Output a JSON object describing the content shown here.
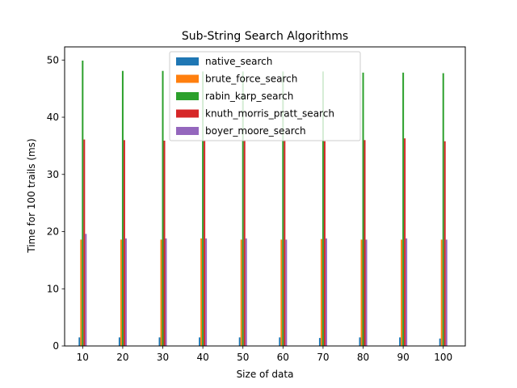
{
  "chart_data": {
    "type": "bar",
    "title": "Sub-String Search Algorithms",
    "xlabel": "Size of data",
    "ylabel": "Time for 100 trails (ms)",
    "categories": [
      "10",
      "20",
      "30",
      "40",
      "50",
      "60",
      "70",
      "80",
      "90",
      "100"
    ],
    "ylim": [
      0,
      52.3
    ],
    "yticks": [
      0,
      10,
      20,
      30,
      40,
      50
    ],
    "grid": false,
    "legend_position": "top-center",
    "series": [
      {
        "name": "native_search",
        "color": "#1f77b4",
        "values": [
          1.5,
          1.5,
          1.5,
          1.5,
          1.5,
          1.5,
          1.4,
          1.5,
          1.5,
          1.3
        ]
      },
      {
        "name": "brute_force_search",
        "color": "#ff7f0e",
        "values": [
          18.6,
          18.6,
          18.6,
          18.8,
          18.6,
          18.6,
          18.7,
          18.6,
          18.6,
          18.6
        ]
      },
      {
        "name": "rabin_karp_search",
        "color": "#2ca02c",
        "values": [
          49.9,
          48.1,
          48.1,
          48.0,
          48.0,
          48.0,
          48.0,
          47.8,
          47.8,
          47.7
        ]
      },
      {
        "name": "knuth_morris_pratt_search",
        "color": "#d62728",
        "values": [
          36.1,
          36.0,
          35.9,
          35.9,
          36.0,
          36.0,
          35.8,
          36.0,
          36.3,
          35.8
        ]
      },
      {
        "name": "boyer_moore_search",
        "color": "#9467bd",
        "values": [
          19.6,
          18.8,
          18.8,
          18.8,
          18.8,
          18.6,
          18.8,
          18.6,
          18.8,
          18.6
        ]
      }
    ]
  }
}
